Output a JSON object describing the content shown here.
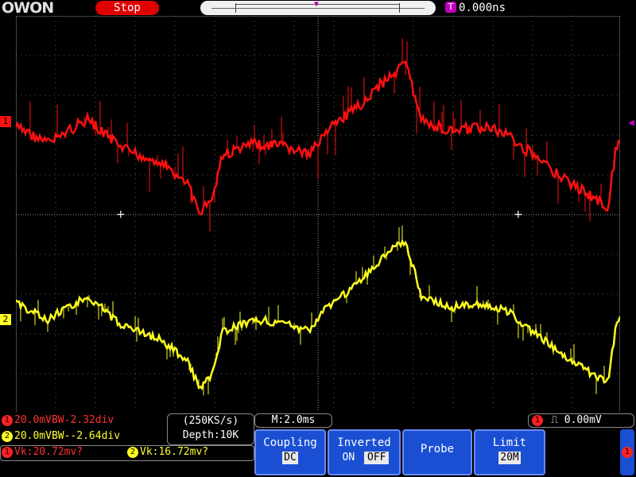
{
  "header": {
    "brand": "OWON",
    "run_state": "Stop",
    "trigger_badge": "T",
    "trigger_time": "0.000ns"
  },
  "channels": {
    "ch1": {
      "badge": "1",
      "color": "#ff1010",
      "info": "20.0mVBW-2.32div",
      "vk": "Vk:20.72mv?"
    },
    "ch2": {
      "badge": "2",
      "color": "#ffff20",
      "info": "20.0mVBW--2.64div",
      "vk": "Vk:16.72mv?"
    }
  },
  "acquisition": {
    "sample_rate": "(250KS/s)",
    "depth": "Depth:10K"
  },
  "timebase": "M:2.0ms",
  "trigger": {
    "badge": "1",
    "slope_icon": "rising-edge-icon",
    "level": "0.00mV"
  },
  "menu": [
    {
      "title": "Coupling",
      "selected": "DC",
      "options": [
        "DC"
      ]
    },
    {
      "title": "Inverted",
      "options": [
        "ON",
        "OFF"
      ],
      "selected": "OFF"
    },
    {
      "title": "Probe",
      "options": []
    },
    {
      "title": "Limit",
      "selected": "20M",
      "options": [
        "20M"
      ]
    }
  ],
  "scroll_badge": "1",
  "colors": {
    "ch1": "#ff1010",
    "ch2": "#ffff20",
    "menu_bg": "#1a4fd4",
    "trigger": "#c000c0",
    "stop": "#e00000"
  }
}
